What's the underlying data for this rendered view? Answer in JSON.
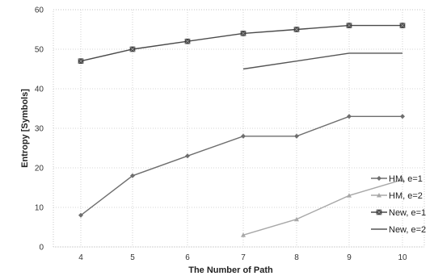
{
  "chart_data": {
    "type": "line",
    "xlabel": "The Number of Path",
    "ylabel": "Entropy [Symbols]",
    "xlim": [
      4,
      10
    ],
    "ylim": [
      0,
      60
    ],
    "x_ticks": [
      "4",
      "5",
      "6",
      "7",
      "8",
      "9",
      "10"
    ],
    "y_ticks": [
      "0",
      "10",
      "20",
      "30",
      "40",
      "50",
      "60"
    ],
    "grid": true,
    "legend_position": "right",
    "series": [
      {
        "name": "HM, e=1",
        "color": "#6e6e6e",
        "marker": "diamond",
        "x": [
          4,
          5,
          6,
          7,
          8,
          9,
          10
        ],
        "values": [
          8,
          18,
          23,
          28,
          28,
          33,
          33
        ]
      },
      {
        "name": "HM, e=2",
        "color": "#a8a8a8",
        "marker": "triangle",
        "x": [
          7,
          8,
          9,
          10
        ],
        "values": [
          3,
          7,
          13,
          17
        ]
      },
      {
        "name": "New, e=1",
        "color": "#4a4a4a",
        "marker": "square",
        "x": [
          4,
          5,
          6,
          7,
          8,
          9,
          10
        ],
        "values": [
          47,
          50,
          52,
          54,
          55,
          56,
          56
        ]
      },
      {
        "name": "New, e=2",
        "color": "#555555",
        "marker": "none",
        "x": [
          7,
          8,
          9,
          10
        ],
        "values": [
          45,
          47,
          49,
          49
        ]
      }
    ]
  }
}
